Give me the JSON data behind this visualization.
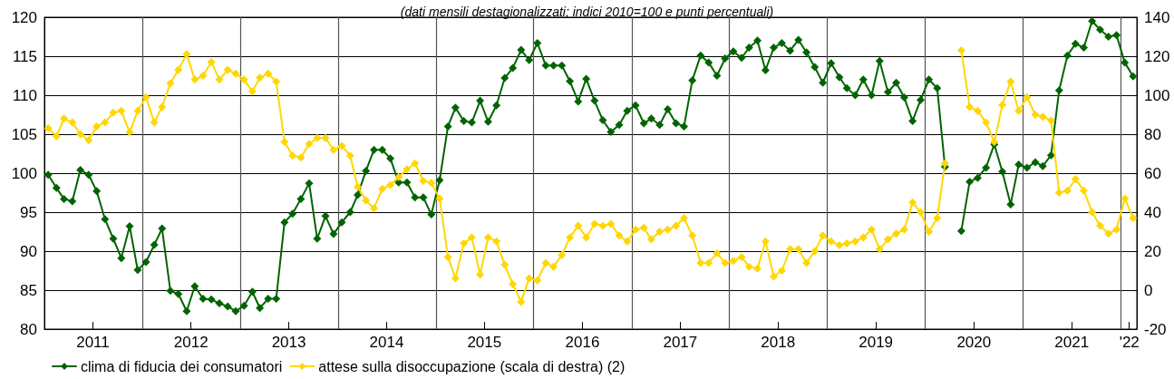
{
  "chart_data": {
    "type": "line",
    "title": "(dati mensili destagionalizzati; indici 2010=100 e punti percentuali)",
    "x": [
      "2011-01-15",
      "2011-02-15",
      "2011-03-15",
      "2011-04-15",
      "2011-05-15",
      "2011-06-15",
      "2011-07-15",
      "2011-08-15",
      "2011-09-15",
      "2011-10-15",
      "2011-11-15",
      "2011-12-15",
      "2012-01-15",
      "2012-02-15",
      "2012-03-15",
      "2012-04-15",
      "2012-05-15",
      "2012-06-15",
      "2012-07-15",
      "2012-08-15",
      "2012-09-15",
      "2012-10-15",
      "2012-11-15",
      "2012-12-15",
      "2013-01-15",
      "2013-02-15",
      "2013-03-15",
      "2013-04-15",
      "2013-05-15",
      "2013-06-15",
      "2013-07-15",
      "2013-08-15",
      "2013-09-15",
      "2013-10-15",
      "2013-11-15",
      "2013-12-15",
      "2014-01-15",
      "2014-02-15",
      "2014-03-15",
      "2014-04-15",
      "2014-05-15",
      "2014-06-15",
      "2014-07-15",
      "2014-08-15",
      "2014-09-15",
      "2014-10-15",
      "2014-11-15",
      "2014-12-15",
      "2015-01-15",
      "2015-02-15",
      "2015-03-15",
      "2015-04-15",
      "2015-05-15",
      "2015-06-15",
      "2015-07-15",
      "2015-08-15",
      "2015-09-15",
      "2015-10-15",
      "2015-11-15",
      "2015-12-15",
      "2016-01-15",
      "2016-02-15",
      "2016-03-15",
      "2016-04-15",
      "2016-05-15",
      "2016-06-15",
      "2016-07-15",
      "2016-08-15",
      "2016-09-15",
      "2016-10-15",
      "2016-11-15",
      "2016-12-15",
      "2017-01-15",
      "2017-02-15",
      "2017-03-15",
      "2017-04-15",
      "2017-05-15",
      "2017-06-15",
      "2017-07-15",
      "2017-08-15",
      "2017-09-15",
      "2017-10-15",
      "2017-11-15",
      "2017-12-15",
      "2018-01-15",
      "2018-02-15",
      "2018-03-15",
      "2018-04-15",
      "2018-05-15",
      "2018-06-15",
      "2018-07-15",
      "2018-08-15",
      "2018-09-15",
      "2018-10-15",
      "2018-11-15",
      "2018-12-15",
      "2019-01-15",
      "2019-02-15",
      "2019-03-15",
      "2019-04-15",
      "2019-05-15",
      "2019-06-15",
      "2019-07-15",
      "2019-08-15",
      "2019-09-15",
      "2019-10-15",
      "2019-11-15",
      "2019-12-15",
      "2020-01-15",
      "2020-02-15",
      "2020-03-15",
      "2020-04-15",
      "2020-05-15",
      "2020-06-15",
      "2020-07-15",
      "2020-08-15",
      "2020-09-15",
      "2020-10-15",
      "2020-11-15",
      "2020-12-15",
      "2021-01-15",
      "2021-02-15",
      "2021-03-15",
      "2021-04-15",
      "2021-05-15",
      "2021-06-15",
      "2021-07-15",
      "2021-08-15",
      "2021-09-15",
      "2021-10-15",
      "2021-11-15",
      "2021-12-15",
      "2022-01-15",
      "2022-02-15"
    ],
    "xlim": [
      "2011-01-01",
      "2022-03-01"
    ],
    "xticks": [
      {
        "value": "2011-07-01",
        "label": "2011"
      },
      {
        "value": "2012-01-01",
        "label": null
      },
      {
        "value": "2012-07-01",
        "label": "2012"
      },
      {
        "value": "2013-01-01",
        "label": null
      },
      {
        "value": "2013-07-01",
        "label": "2013"
      },
      {
        "value": "2014-01-01",
        "label": null
      },
      {
        "value": "2014-07-01",
        "label": "2014"
      },
      {
        "value": "2015-01-01",
        "label": null
      },
      {
        "value": "2015-07-01",
        "label": "2015"
      },
      {
        "value": "2016-01-01",
        "label": null
      },
      {
        "value": "2016-07-01",
        "label": "2016"
      },
      {
        "value": "2017-01-01",
        "label": null
      },
      {
        "value": "2017-07-01",
        "label": "2017"
      },
      {
        "value": "2018-01-01",
        "label": null
      },
      {
        "value": "2018-07-01",
        "label": "2018"
      },
      {
        "value": "2019-01-01",
        "label": null
      },
      {
        "value": "2019-07-01",
        "label": "2019"
      },
      {
        "value": "2020-01-01",
        "label": null
      },
      {
        "value": "2020-07-01",
        "label": "2020"
      },
      {
        "value": "2021-01-01",
        "label": null
      },
      {
        "value": "2021-07-01",
        "label": "2021"
      },
      {
        "value": "2022-01-01",
        "label": null
      },
      {
        "value": "2022-02-01",
        "label": "'22"
      }
    ],
    "ylim": [
      80,
      120
    ],
    "yticks": [
      80,
      85,
      90,
      95,
      100,
      105,
      110,
      115,
      120
    ],
    "y2lim": [
      -20,
      140
    ],
    "y2ticks": [
      -20,
      0,
      20,
      40,
      60,
      80,
      100,
      120,
      140
    ],
    "series": [
      {
        "name": "clima di fiducia dei consumatori",
        "color": "#006400",
        "values": [
          99.8,
          98.1,
          96.7,
          96.4,
          100.4,
          99.8,
          97.7,
          94.1,
          91.6,
          89.1,
          93.2,
          87.6,
          88.6,
          90.8,
          92.9,
          84.9,
          84.5,
          82.3,
          85.5,
          83.9,
          83.8,
          83.3,
          82.9,
          82.3,
          83.0,
          84.8,
          82.7,
          83.9,
          83.9,
          93.7,
          94.8,
          96.7,
          98.7,
          91.6,
          94.5,
          92.2,
          93.7,
          95.0,
          97.2,
          100.3,
          103.0,
          103.0,
          101.9,
          98.8,
          98.8,
          96.9,
          96.9,
          94.7,
          99.1,
          106.0,
          108.4,
          106.7,
          106.5,
          109.3,
          106.6,
          108.7,
          112.2,
          113.5,
          115.8,
          114.5,
          116.7,
          113.8,
          113.8,
          113.8,
          111.8,
          109.2,
          112.1,
          109.3,
          106.8,
          105.3,
          106.2,
          108.0,
          108.7,
          106.4,
          107.0,
          106.2,
          108.2,
          106.4,
          106.0,
          111.9,
          115.1,
          114.2,
          112.5,
          114.7,
          115.6,
          114.8,
          116.1,
          117.0,
          113.2,
          116.1,
          116.7,
          115.7,
          117.1,
          115.5,
          113.6,
          111.6,
          114.1,
          112.3,
          110.9,
          110.0,
          112.0,
          110.0,
          114.4,
          110.4,
          111.6,
          109.7,
          106.7,
          109.4,
          112.0,
          110.9,
          100.8,
          null,
          92.6,
          98.9,
          99.4,
          100.7,
          103.7,
          100.2,
          96.0,
          101.1,
          100.7,
          101.4,
          100.9,
          102.3,
          110.6,
          115.1,
          116.6,
          116.1,
          119.5,
          118.4,
          117.5,
          117.7,
          114.2,
          112.4
        ]
      },
      {
        "name": "attese sulla disoccupazione (scala di destra) (2)",
        "color": "#ffd700",
        "axis": "y2",
        "values": [
          83,
          79,
          88,
          86,
          80,
          77,
          84,
          86,
          91,
          92,
          81,
          92,
          99,
          86,
          94,
          106,
          113,
          121,
          108,
          110,
          117,
          108,
          113,
          111,
          108,
          102,
          109,
          111,
          107,
          76,
          69,
          68,
          75,
          78,
          78,
          72,
          74,
          69,
          53,
          46,
          42,
          52,
          54,
          58,
          62,
          65,
          56,
          55,
          47,
          17,
          6,
          24,
          27,
          8,
          27,
          25,
          13,
          3,
          -6,
          6,
          5,
          14,
          12,
          18,
          27,
          33,
          27,
          34,
          33,
          34,
          28,
          25,
          31,
          32,
          26,
          30,
          31,
          33,
          37,
          28,
          14,
          14,
          19,
          14,
          15,
          17,
          12,
          11,
          25,
          7,
          10,
          21,
          21,
          14,
          20,
          28,
          25,
          23,
          24,
          25,
          27,
          31,
          21,
          26,
          29,
          31,
          45,
          40,
          30,
          37,
          65,
          null,
          123,
          94,
          92,
          86,
          76,
          95,
          107,
          92,
          99,
          90,
          89,
          87,
          50,
          51,
          57,
          51,
          40,
          33,
          29,
          31,
          47,
          37
        ]
      }
    ],
    "grid": true,
    "legend": "bottom",
    "marker": "diamond"
  }
}
